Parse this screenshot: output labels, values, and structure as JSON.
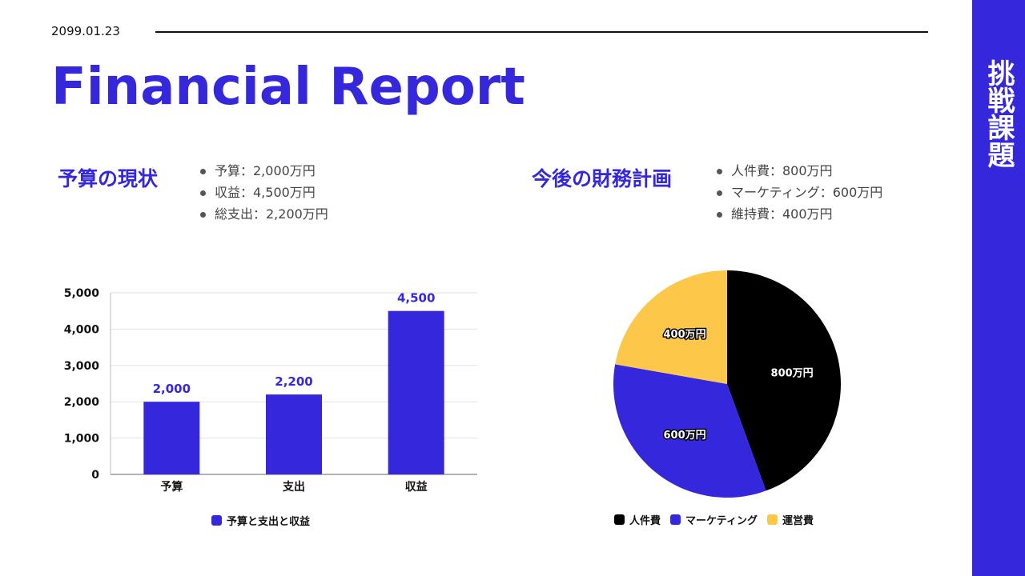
{
  "header": {
    "date": "2099.01.23",
    "title": "Financial Report"
  },
  "sidebar": {
    "text": "挑戦課題"
  },
  "left": {
    "heading": "予算の現状",
    "bullets": [
      "予算：2,000万円",
      "収益：4,500万円",
      "総支出：2,200万円"
    ]
  },
  "right": {
    "heading": "今後の財務計画",
    "bullets": [
      "人件費：800万円",
      "マーケティング：600万円",
      "維持費：400万円"
    ]
  },
  "chart_data": [
    {
      "type": "bar",
      "categories": [
        "予算",
        "支出",
        "収益"
      ],
      "series": [
        {
          "name": "予算と支出と収益",
          "values": [
            2000,
            2200,
            4500
          ],
          "color": "#3427dc"
        }
      ],
      "data_labels": [
        "2,000",
        "2,200",
        "4,500"
      ],
      "ylim": [
        0,
        5000
      ],
      "yticks": [
        "0",
        "1,000",
        "2,000",
        "3,000",
        "4,000",
        "5,000"
      ],
      "grid": true,
      "legend": "bottom"
    },
    {
      "type": "pie",
      "categories": [
        "人件費",
        "マーケティング",
        "運営費"
      ],
      "values": [
        800,
        600,
        400
      ],
      "data_labels": [
        "800万円",
        "600万円",
        "400万円"
      ],
      "colors": [
        "#000000",
        "#3427dc",
        "#fdc84a"
      ],
      "legend": "bottom"
    }
  ]
}
